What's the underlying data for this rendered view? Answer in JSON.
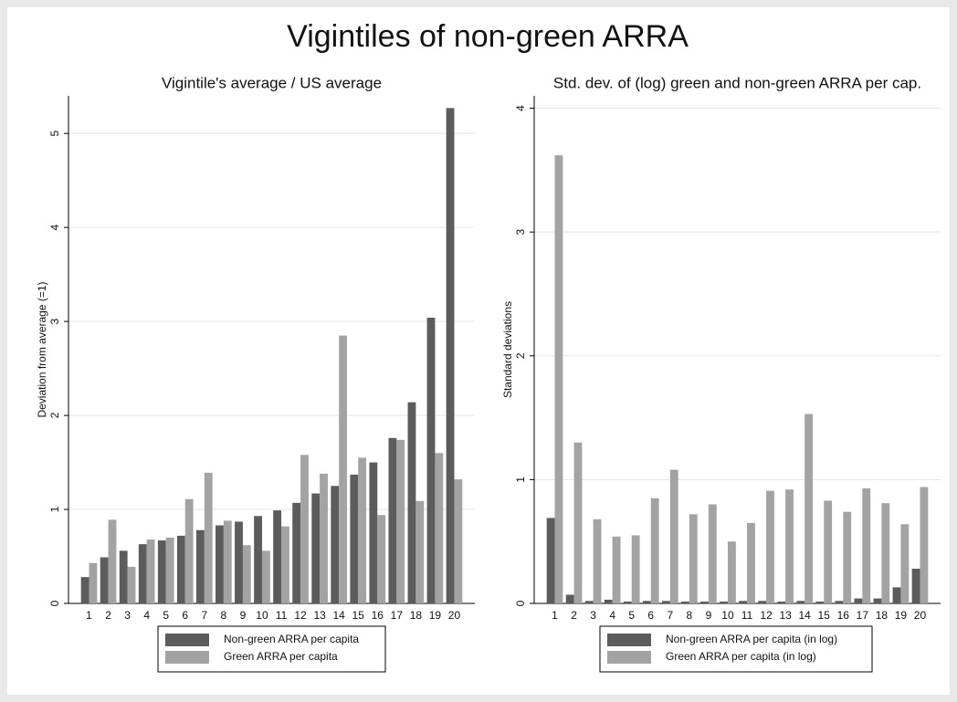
{
  "title": "Vigintiles of non-green ARRA",
  "chart_data": [
    {
      "type": "bar",
      "title": "Vigintile's average / US average",
      "ylabel": "Deviation from average (=1)",
      "categories": [
        "1",
        "2",
        "3",
        "4",
        "5",
        "6",
        "7",
        "8",
        "9",
        "10",
        "11",
        "12",
        "13",
        "14",
        "15",
        "16",
        "17",
        "18",
        "19",
        "20"
      ],
      "series": [
        {
          "name": "Non-green ARRA per capita",
          "color": "#5c5c5c",
          "values": [
            0.28,
            0.49,
            0.56,
            0.63,
            0.67,
            0.72,
            0.78,
            0.83,
            0.87,
            0.93,
            0.99,
            1.07,
            1.17,
            1.25,
            1.37,
            1.5,
            1.76,
            2.14,
            3.04,
            5.27
          ]
        },
        {
          "name": "Green ARRA per capita",
          "color": "#a3a3a3",
          "values": [
            0.43,
            0.89,
            0.39,
            0.68,
            0.7,
            1.11,
            1.39,
            0.88,
            0.62,
            0.56,
            0.82,
            1.58,
            1.38,
            2.85,
            1.55,
            0.94,
            1.74,
            1.09,
            1.6,
            1.32
          ]
        }
      ],
      "ylim": [
        0,
        5.4
      ],
      "yticks": [
        0,
        1,
        2,
        3,
        4,
        5
      ],
      "grid": true
    },
    {
      "type": "bar",
      "title": "Std. dev. of (log) green and non-green ARRA per cap.",
      "ylabel": "Standard deviations",
      "categories": [
        "1",
        "2",
        "3",
        "4",
        "5",
        "6",
        "7",
        "8",
        "9",
        "10",
        "11",
        "12",
        "13",
        "14",
        "15",
        "16",
        "17",
        "18",
        "19",
        "20"
      ],
      "series": [
        {
          "name": "Non-green ARRA per capita (in log)",
          "color": "#5c5c5c",
          "values": [
            0.69,
            0.07,
            0.02,
            0.03,
            0.015,
            0.02,
            0.02,
            0.015,
            0.015,
            0.015,
            0.02,
            0.02,
            0.015,
            0.02,
            0.015,
            0.02,
            0.04,
            0.04,
            0.13,
            0.28
          ]
        },
        {
          "name": "Green ARRA per capita (in log)",
          "color": "#a3a3a3",
          "values": [
            3.62,
            1.3,
            0.68,
            0.54,
            0.55,
            0.85,
            1.08,
            0.72,
            0.8,
            0.5,
            0.65,
            0.91,
            0.92,
            1.53,
            0.83,
            0.74,
            0.93,
            0.81,
            0.64,
            0.94
          ]
        }
      ],
      "ylim": [
        0,
        4.1
      ],
      "yticks": [
        0,
        1,
        2,
        3,
        4
      ],
      "grid": true
    }
  ]
}
